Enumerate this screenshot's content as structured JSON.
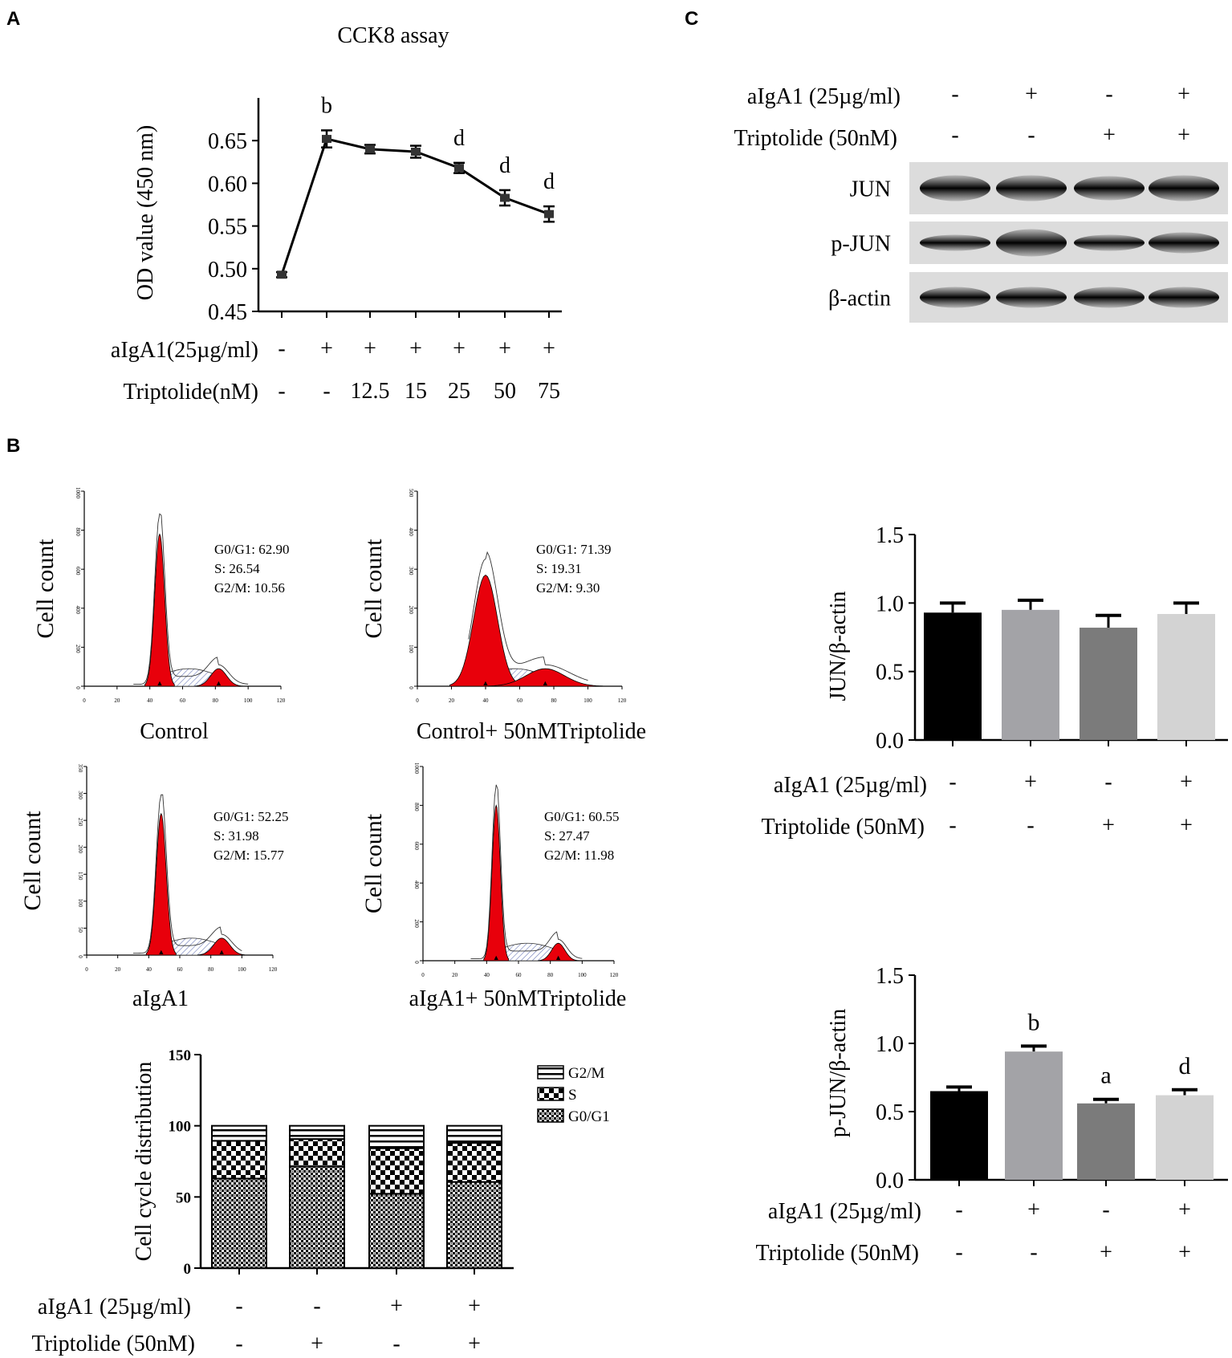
{
  "panel_labels": {
    "a": "A",
    "b": "B",
    "c": "C"
  },
  "treatment_labels": {
    "aiga1_compact": "aIgA1(25µg/ml)",
    "trip_compact": "Triptolide(nM)",
    "aiga1": "aIgA1 (25µg/ml)",
    "trip": "Triptolide (50nM)"
  },
  "histograms": [
    {
      "caption": "Control",
      "ylabel": "Cell count",
      "stats": [
        "G0/G1: 62.90",
        "S: 26.54",
        "G2/M: 10.56"
      ],
      "yticks": [
        "0",
        "200",
        "400",
        "600",
        "800",
        "1000"
      ],
      "xticks": [
        "0",
        "20",
        "40",
        "60",
        "80",
        "100",
        "120"
      ]
    },
    {
      "caption": "Control+ 50nMTriptolide",
      "ylabel": "Cell count",
      "stats": [
        "G0/G1: 71.39",
        "S: 19.31",
        "G2/M: 9.30"
      ],
      "yticks": [
        "0",
        "100",
        "200",
        "300",
        "400",
        "500"
      ],
      "xticks": [
        "0",
        "20",
        "40",
        "60",
        "80",
        "100",
        "120"
      ]
    },
    {
      "caption": "aIgA1",
      "ylabel": "Cell count",
      "stats": [
        "G0/G1: 52.25",
        "S: 31.98",
        "G2/M: 15.77"
      ],
      "yticks": [
        "0",
        "50",
        "100",
        "150",
        "200",
        "250",
        "300",
        "350"
      ],
      "xticks": [
        "0",
        "20",
        "40",
        "60",
        "80",
        "100",
        "120"
      ]
    },
    {
      "caption": "aIgA1+ 50nMTriptolide",
      "ylabel": "Cell count",
      "stats": [
        "G0/G1: 60.55",
        "S: 27.47",
        "G2/M: 11.98"
      ],
      "yticks": [
        "0",
        "200",
        "400",
        "600",
        "800",
        "1000"
      ],
      "xticks": [
        "0",
        "20",
        "40",
        "60",
        "80",
        "100",
        "120"
      ]
    }
  ],
  "western_blot": {
    "aiga1_row": [
      "-",
      "+",
      "-",
      "+"
    ],
    "trip_row": [
      "-",
      "-",
      "+",
      "+"
    ],
    "bands": [
      "JUN",
      "p-JUN",
      "β-actin"
    ]
  },
  "chart_data": [
    {
      "id": "cck8",
      "type": "line",
      "title": "CCK8 assay",
      "ylabel": "OD value (450 nm)",
      "xlabel": "",
      "ylim": [
        0.45,
        0.7
      ],
      "yticks": [
        "0.45",
        "0.50",
        "0.55",
        "0.60",
        "0.65"
      ],
      "aiga1": [
        "-",
        "+",
        "+",
        "+",
        "+",
        "+",
        "+"
      ],
      "triptolide": [
        "-",
        "-",
        "12.5",
        "15",
        "25",
        "50",
        "75"
      ],
      "values": [
        0.493,
        0.652,
        0.64,
        0.637,
        0.618,
        0.583,
        0.564
      ],
      "errors": [
        0.003,
        0.01,
        0.005,
        0.007,
        0.006,
        0.009,
        0.009
      ],
      "annotations": [
        "",
        "b",
        "",
        "",
        "d",
        "d",
        "d"
      ]
    },
    {
      "id": "cell_cycle",
      "type": "bar",
      "stacked": true,
      "ylabel": "Cell cycle distribution",
      "ylim": [
        0,
        150
      ],
      "yticks": [
        "0",
        "50",
        "100",
        "150"
      ],
      "aiga1": [
        "-",
        "-",
        "+",
        "+"
      ],
      "triptolide": [
        "-",
        "+",
        "-",
        "+"
      ],
      "series": [
        {
          "name": "G0/G1",
          "values": [
            62.9,
            71.39,
            52.25,
            60.55
          ]
        },
        {
          "name": "S",
          "values": [
            26.54,
            19.31,
            31.98,
            27.47
          ]
        },
        {
          "name": "G2/M",
          "values": [
            10.56,
            9.3,
            15.77,
            11.98
          ]
        }
      ],
      "legend": [
        "G2/M",
        "S",
        "G0/G1"
      ]
    },
    {
      "id": "jun",
      "type": "bar",
      "ylabel": "JUN/β-actin",
      "ylim": [
        0,
        1.5
      ],
      "yticks": [
        "0.0",
        "0.5",
        "1.0",
        "1.5"
      ],
      "aiga1": [
        "-",
        "+",
        "-",
        "+"
      ],
      "triptolide": [
        "-",
        "-",
        "+",
        "+"
      ],
      "values": [
        0.93,
        0.95,
        0.82,
        0.92
      ],
      "errors": [
        0.07,
        0.07,
        0.09,
        0.08
      ],
      "colors": [
        "#000000",
        "#a3a3a7",
        "#7b7b7b",
        "#d3d3d3"
      ],
      "annotations": [
        "",
        "",
        "",
        ""
      ]
    },
    {
      "id": "pjun",
      "type": "bar",
      "ylabel": "p-JUN/β-actin",
      "ylim": [
        0,
        1.5
      ],
      "yticks": [
        "0.0",
        "0.5",
        "1.0",
        "1.5"
      ],
      "aiga1": [
        "-",
        "+",
        "-",
        "+"
      ],
      "triptolide": [
        "-",
        "-",
        "+",
        "+"
      ],
      "values": [
        0.65,
        0.94,
        0.56,
        0.62
      ],
      "errors": [
        0.03,
        0.04,
        0.03,
        0.04
      ],
      "colors": [
        "#000000",
        "#a3a3a7",
        "#7b7b7b",
        "#d3d3d3"
      ],
      "annotations": [
        "",
        "b",
        "a",
        "d"
      ]
    }
  ]
}
